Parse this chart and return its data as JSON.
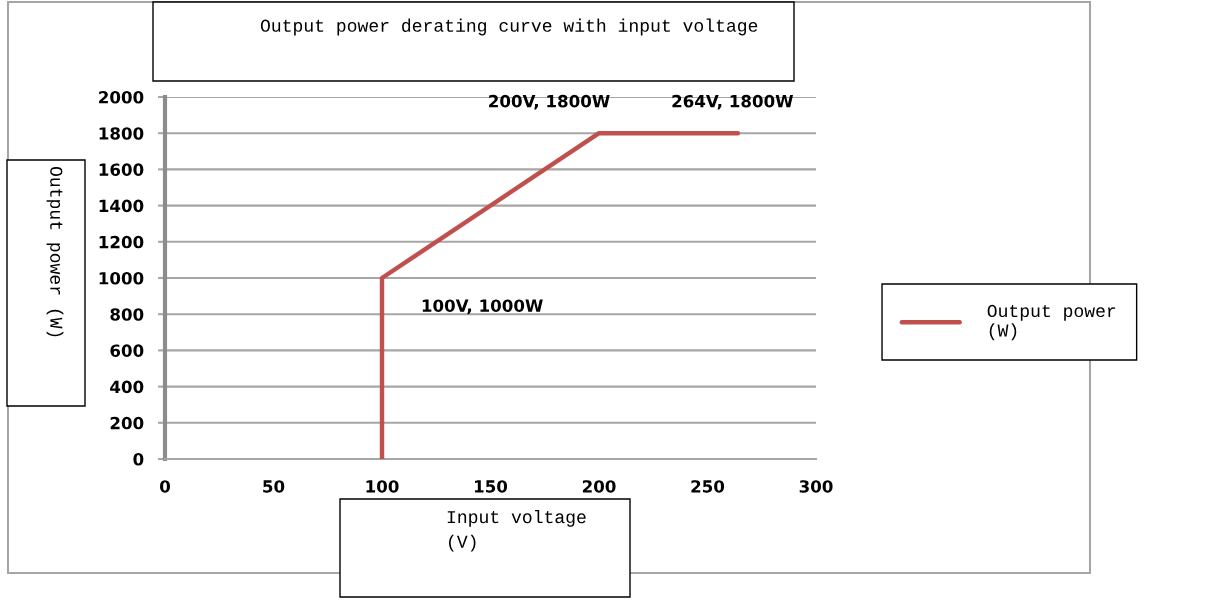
{
  "chart_data": {
    "type": "line",
    "title": "Output power derating curve with input voltage",
    "xlabel": "Input voltage\n(V)",
    "ylabel": "Output power (W)",
    "x": [
      100,
      100,
      200,
      264
    ],
    "series": [
      {
        "name": "Output power\n(W)",
        "color": "#c0504d",
        "values": [
          0,
          1000,
          1800,
          1800
        ]
      }
    ],
    "xlim": [
      0,
      300
    ],
    "xticks": [
      0,
      50,
      100,
      150,
      200,
      250,
      300
    ],
    "ylim": [
      0,
      2000
    ],
    "yticks": [
      0,
      200,
      400,
      600,
      800,
      1000,
      1200,
      1400,
      1600,
      1800,
      2000
    ],
    "grid": "y",
    "legend": "right",
    "marker": "none",
    "line_style": "solid",
    "annotations": [
      {
        "text": "100V, 1000W",
        "x": 100,
        "y": 1000
      },
      {
        "text": "200V, 1800W",
        "x": 200,
        "y": 1800
      },
      {
        "text": "264V, 1800W",
        "x": 264,
        "y": 1800
      }
    ]
  }
}
